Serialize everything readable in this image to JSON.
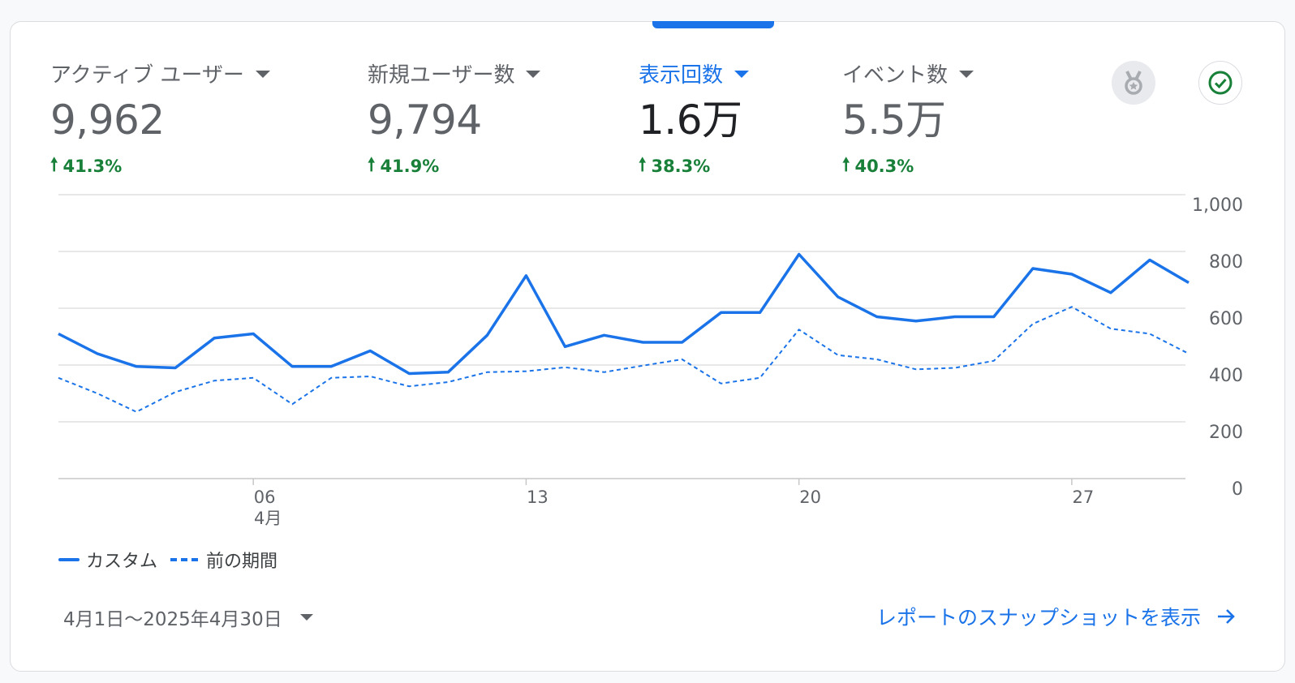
{
  "metrics": [
    {
      "label": "アクティブ ユーザー",
      "value": "9,962",
      "change": "41.3%"
    },
    {
      "label": "新規ユーザー数",
      "value": "9,794",
      "change": "41.9%"
    },
    {
      "label": "表示回数",
      "value": "1.6万",
      "change": "38.3%"
    },
    {
      "label": "イベント数",
      "value": "5.5万",
      "change": "40.3%"
    }
  ],
  "icons": {
    "insights": "medal-icon",
    "status": "check-circle-icon"
  },
  "colors": {
    "accent": "#1a73e8",
    "positive": "#188038",
    "grid": "#e0e0e0",
    "text": "#5f6368"
  },
  "chart_data": {
    "type": "line",
    "x": [
      "04-01",
      "04-02",
      "04-03",
      "04-04",
      "04-05",
      "04-06",
      "04-07",
      "04-08",
      "04-09",
      "04-10",
      "04-11",
      "04-12",
      "04-13",
      "04-14",
      "04-15",
      "04-16",
      "04-17",
      "04-18",
      "04-19",
      "04-20",
      "04-21",
      "04-22",
      "04-23",
      "04-24",
      "04-25",
      "04-26",
      "04-27",
      "04-28",
      "04-29",
      "04-30"
    ],
    "x_tick_labels": [
      {
        "index": 5,
        "label": "06",
        "sublabel": "4月"
      },
      {
        "index": 12,
        "label": "13"
      },
      {
        "index": 19,
        "label": "20"
      },
      {
        "index": 26,
        "label": "27"
      }
    ],
    "y_ticks": [
      0,
      200,
      400,
      600,
      800,
      1000
    ],
    "y_tick_labels": [
      "0",
      "200",
      "400",
      "600",
      "800",
      "1,000"
    ],
    "ylim": [
      0,
      1000
    ],
    "grid": true,
    "legend_position": "bottom-left",
    "series": [
      {
        "name": "カスタム",
        "style": "solid",
        "values": [
          510,
          440,
          395,
          390,
          495,
          510,
          395,
          395,
          450,
          370,
          375,
          505,
          715,
          465,
          505,
          480,
          480,
          585,
          585,
          790,
          640,
          570,
          555,
          570,
          570,
          740,
          720,
          655,
          770,
          690
        ]
      },
      {
        "name": "前の期間",
        "style": "dashed",
        "values": [
          355,
          300,
          235,
          305,
          345,
          355,
          262,
          355,
          360,
          325,
          340,
          375,
          378,
          392,
          375,
          398,
          420,
          335,
          355,
          525,
          435,
          420,
          385,
          390,
          415,
          545,
          605,
          528,
          510,
          440
        ]
      }
    ]
  },
  "footer": {
    "date_range": "4月1日〜2025年4月30日",
    "snapshot_link": "レポートのスナップショットを表示"
  }
}
